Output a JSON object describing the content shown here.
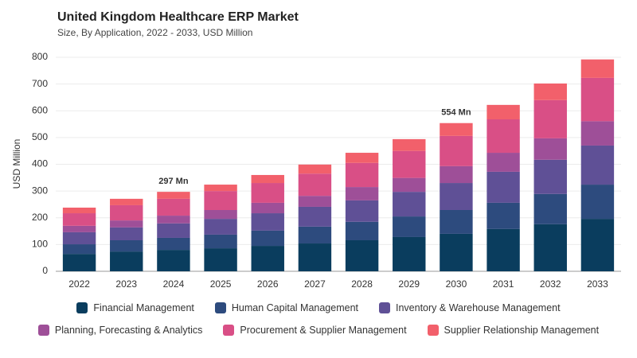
{
  "chart_data": {
    "type": "stacked_bar",
    "title": "United Kingdom Healthcare ERP Market",
    "subtitle": "Size, By Application, 2022 - 2033, USD Million",
    "y_label": "USD Million",
    "categories": [
      "2022",
      "2023",
      "2024",
      "2025",
      "2026",
      "2027",
      "2028",
      "2029",
      "2030",
      "2031",
      "2032",
      "2033"
    ],
    "series": [
      {
        "name": "Financial Management",
        "color": "#0a3d5e",
        "values": [
          65,
          74,
          80,
          86,
          95,
          104,
          116,
          128,
          140,
          158,
          176,
          196
        ]
      },
      {
        "name": "Human Capital Management",
        "color": "#2d4b7e",
        "values": [
          36,
          42,
          45,
          51,
          57,
          63,
          69,
          77,
          89,
          98,
          113,
          128
        ]
      },
      {
        "name": "Inventory & Warehouse Management",
        "color": "#5f5096",
        "values": [
          45,
          48,
          54,
          59,
          65,
          74,
          80,
          92,
          101,
          116,
          128,
          146
        ]
      },
      {
        "name": "Planning, Forecasting & Analytics",
        "color": "#9e4f98",
        "values": [
          24,
          26,
          29,
          33,
          39,
          41,
          50,
          52,
          63,
          71,
          80,
          91
        ]
      },
      {
        "name": "Procurement & Supplier Management",
        "color": "#d94f86",
        "values": [
          47,
          57,
          63,
          71,
          74,
          83,
          90,
          101,
          113,
          125,
          143,
          162
        ]
      },
      {
        "name": "Supplier Relationship Management",
        "color": "#f2606b",
        "values": [
          21,
          24,
          26,
          24,
          30,
          34,
          38,
          44,
          48,
          54,
          62,
          69
        ]
      }
    ],
    "annotations": [
      {
        "text": "297 Mn",
        "x": "2024"
      },
      {
        "text": "554 Mn",
        "x": "2030"
      }
    ],
    "ylim": [
      0,
      800
    ],
    "yticks": [
      0,
      100,
      200,
      300,
      400,
      500,
      600,
      700,
      800
    ],
    "grid": true
  }
}
